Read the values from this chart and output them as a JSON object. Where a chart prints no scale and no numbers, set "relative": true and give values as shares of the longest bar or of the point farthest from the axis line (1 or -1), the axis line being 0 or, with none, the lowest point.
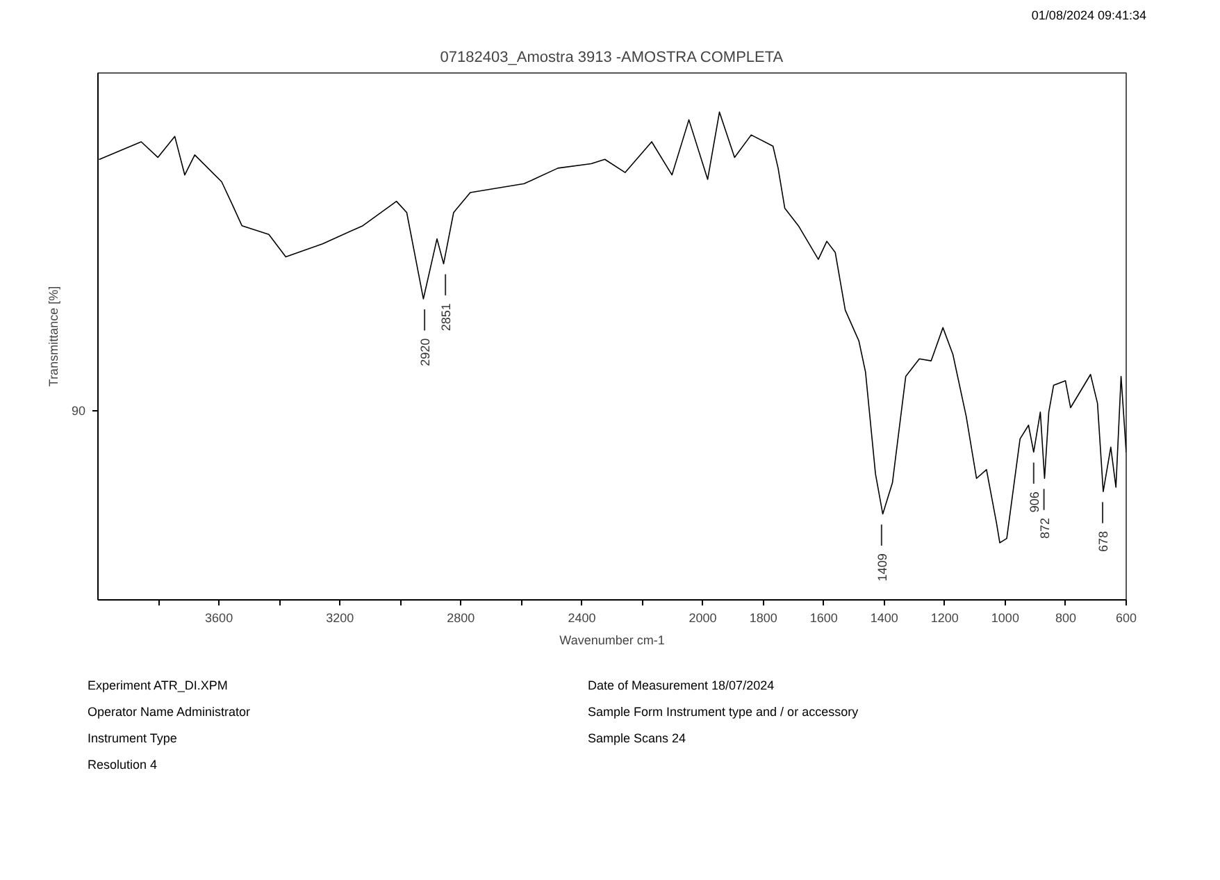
{
  "chart_data": {
    "type": "line",
    "title": "07182403_Amostra 3913 -AMOSTRA COMPLETA",
    "xlabel": "Wavenumber cm-1",
    "ylabel": "Transmittance [%]",
    "relative": true,
    "grid": false,
    "x": [
      3995,
      3857,
      3802,
      3746,
      3713,
      3680,
      3591,
      3557,
      3524,
      3435,
      3379,
      3257,
      3124,
      3013,
      2979,
      2924,
      2879,
      2857,
      2824,
      2769,
      2591,
      2479,
      2369,
      2324,
      2257,
      2169,
      2102,
      2046,
      1984,
      1945,
      1895,
      1840,
      1768,
      1751,
      1729,
      1684,
      1618,
      1590,
      1562,
      1529,
      1484,
      1462,
      1429,
      1405,
      1373,
      1329,
      1284,
      1245,
      1206,
      1173,
      1129,
      1095,
      1062,
      1029,
      1018,
      995,
      951,
      923,
      906,
      884,
      870,
      856,
      840,
      801,
      784,
      718,
      695,
      676,
      651,
      634,
      617,
      600
    ],
    "series": [
      {
        "color": "#000000",
        "values": [
          0.903,
          0.939,
          0.907,
          0.95,
          0.871,
          0.912,
          0.857,
          0.812,
          0.767,
          0.749,
          0.703,
          0.73,
          0.767,
          0.817,
          0.794,
          0.617,
          0.74,
          0.689,
          0.794,
          0.835,
          0.853,
          0.885,
          0.894,
          0.903,
          0.876,
          0.939,
          0.871,
          0.984,
          0.862,
          1.0,
          0.907,
          0.953,
          0.93,
          0.885,
          0.803,
          0.767,
          0.698,
          0.735,
          0.712,
          0.594,
          0.531,
          0.467,
          0.258,
          0.176,
          0.24,
          0.458,
          0.494,
          0.49,
          0.558,
          0.503,
          0.376,
          0.249,
          0.267,
          0.158,
          0.117,
          0.126,
          0.33,
          0.358,
          0.303,
          0.385,
          0.249,
          0.385,
          0.44,
          0.449,
          0.394,
          0.462,
          0.403,
          0.222,
          0.313,
          0.231,
          0.458,
          0.303
        ]
      }
    ],
    "xlim": [
      4000,
      600
    ],
    "xticks": [
      {
        "value": 3800,
        "label": null
      },
      3600,
      {
        "value": 3400,
        "label": null
      },
      3200,
      {
        "value": 3000,
        "label": null
      },
      2800,
      {
        "value": 2600,
        "label": null
      },
      2400,
      {
        "value": 2200,
        "label": null
      },
      2000,
      1800,
      1600,
      1400,
      1200,
      1000,
      800,
      600
    ],
    "annotations": [
      "01/08/2024 09:41:34",
      "90",
      {
        "text": "2920",
        "x": 2920,
        "y": 0.617
      },
      {
        "text": "2851",
        "x": 2851,
        "y": 0.689
      },
      {
        "text": "1409",
        "x": 1409,
        "y": 0.176
      },
      {
        "text": "906",
        "x": 906,
        "y": 0.303
      },
      {
        "text": "872",
        "x": 872,
        "y": 0.249
      },
      {
        "text": "678",
        "x": 678,
        "y": 0.222
      },
      "Experiment ATR_DI.XPM",
      "Operator Name Administrator",
      "Instrument Type",
      "Resolution 4",
      "Date of Measurement 18/07/2024",
      "Sample Form Instrument type and / or accessory",
      "Sample Scans 24"
    ]
  }
}
